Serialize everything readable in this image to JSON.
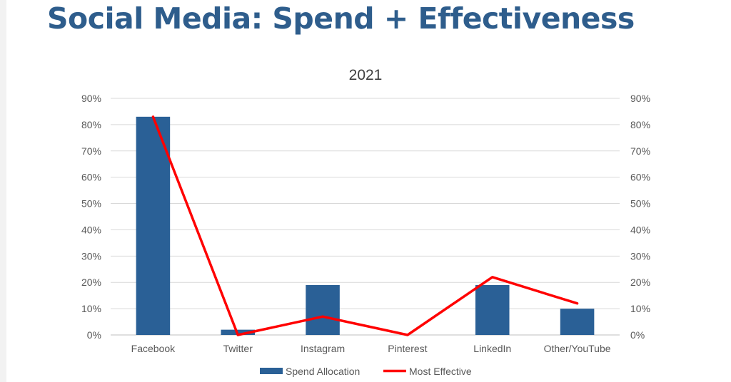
{
  "slide": {
    "title": "Social Media: Spend + Effectiveness"
  },
  "chart_data": {
    "type": "bar",
    "title": "2021",
    "categories": [
      "Facebook",
      "Twitter",
      "Instagram",
      "Pinterest",
      "LinkedIn",
      "Other/YouTube"
    ],
    "series": [
      {
        "name": "Spend Allocation",
        "type": "bar",
        "axis": "left",
        "color": "#2a6096",
        "values": [
          83,
          2,
          19,
          0,
          19,
          10
        ]
      },
      {
        "name": "Most Effective",
        "type": "line",
        "axis": "right",
        "color": "#ff0000",
        "values": [
          83,
          0,
          7,
          0,
          22,
          12
        ]
      }
    ],
    "ylim": [
      0,
      90
    ],
    "y2lim": [
      0,
      90
    ],
    "yticks": [
      "0%",
      "10%",
      "20%",
      "30%",
      "40%",
      "50%",
      "60%",
      "70%",
      "80%",
      "90%"
    ],
    "y2ticks": [
      "0%",
      "10%",
      "20%",
      "30%",
      "40%",
      "50%",
      "60%",
      "70%",
      "80%",
      "90%"
    ],
    "grid": true,
    "legend": "bottom"
  }
}
